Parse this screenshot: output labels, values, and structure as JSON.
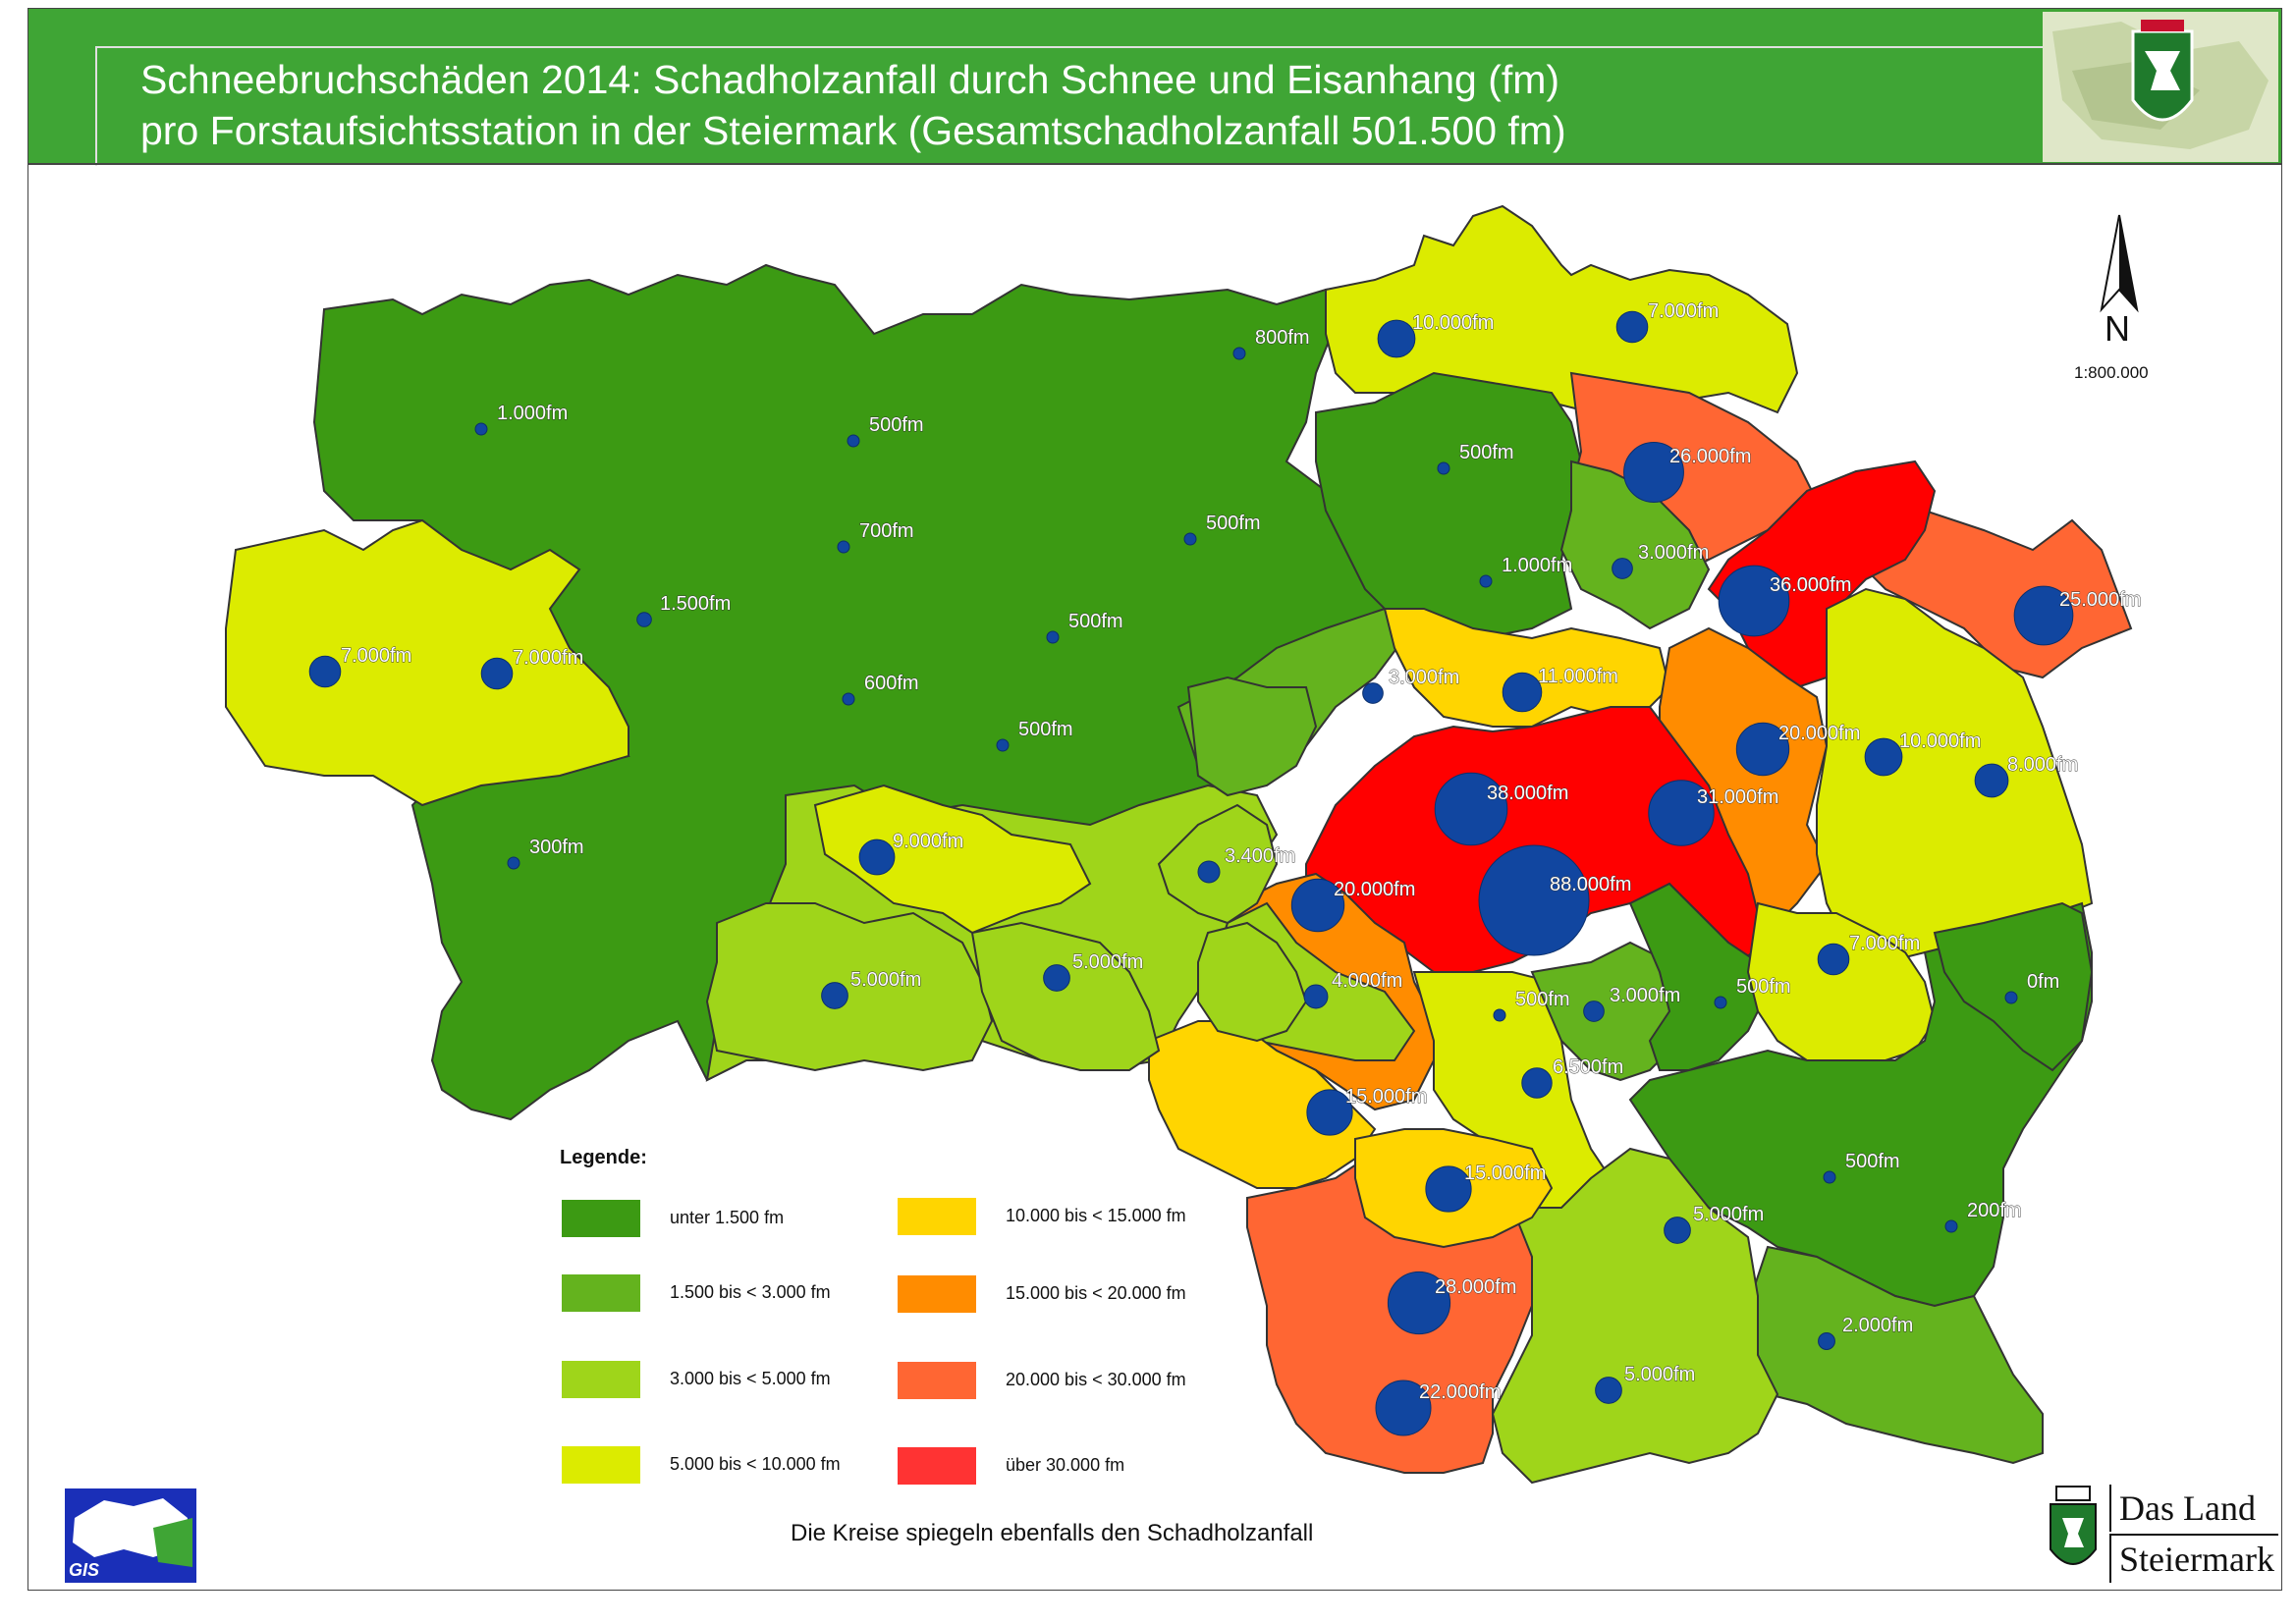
{
  "title": {
    "line1": "Schneebruchschäden 2014: Schadholzanfall durch Schnee und Eisanhang (fm)",
    "line2": "pro Forstaufsichtsstation in der Steiermark (Gesamtschadholzanfall 501.500 fm)"
  },
  "colors": {
    "header": "#3fa535",
    "c1": "#3c9a13",
    "c2": "#64b31e",
    "c3": "#9fd51a",
    "c4": "#dceb00",
    "c5": "#ffd500",
    "c6": "#ff8c00",
    "c7": "#ff6633",
    "c8": "#ff0000",
    "circle": "#1146a0"
  },
  "legend": {
    "title": "Legende:",
    "items": [
      {
        "label": "unter  1.500 fm",
        "color": "#3c9a13"
      },
      {
        "label": "1.500 bis <  3.000 fm",
        "color": "#64b31e"
      },
      {
        "label": "3.000 bis <  5.000 fm",
        "color": "#9fd51a"
      },
      {
        "label": "5.000 bis < 10.000 fm",
        "color": "#dceb00"
      },
      {
        "label": "10.000 bis < 15.000 fm",
        "color": "#ffd500"
      },
      {
        "label": "15.000 bis < 20.000 fm",
        "color": "#ff8c00"
      },
      {
        "label": "20.000 bis < 30.000 fm",
        "color": "#ff6633"
      },
      {
        "label": "über 30.000 fm",
        "color": "#ff3333"
      }
    ]
  },
  "stations": [
    {
      "label": "1.000fm",
      "value": 1000
    },
    {
      "label": "500fm",
      "value": 500
    },
    {
      "label": "800fm",
      "value": 800
    },
    {
      "label": "10.000fm",
      "value": 10000
    },
    {
      "label": "7.000fm",
      "value": 7000
    },
    {
      "label": "700fm",
      "value": 700
    },
    {
      "label": "500fm",
      "value": 500
    },
    {
      "label": "500fm",
      "value": 500
    },
    {
      "label": "26.000fm",
      "value": 26000
    },
    {
      "label": "1.500fm",
      "value": 1500
    },
    {
      "label": "7.000fm",
      "value": 7000
    },
    {
      "label": "7.000fm",
      "value": 7000
    },
    {
      "label": "500fm",
      "value": 500
    },
    {
      "label": "1.000fm",
      "value": 1000
    },
    {
      "label": "3.000fm",
      "value": 3000
    },
    {
      "label": "36.000fm",
      "value": 36000
    },
    {
      "label": "25.000fm",
      "value": 25000
    },
    {
      "label": "600fm",
      "value": 600
    },
    {
      "label": "500fm",
      "value": 500
    },
    {
      "label": "3.000fm",
      "value": 3000
    },
    {
      "label": "11.000fm",
      "value": 11000
    },
    {
      "label": "20.000fm",
      "value": 20000
    },
    {
      "label": "10.000fm",
      "value": 10000
    },
    {
      "label": "8.000fm",
      "value": 8000
    },
    {
      "label": "300fm",
      "value": 300
    },
    {
      "label": "9.000fm",
      "value": 9000
    },
    {
      "label": "3.400fm",
      "value": 3400
    },
    {
      "label": "38.000fm",
      "value": 38000
    },
    {
      "label": "31.000fm",
      "value": 31000
    },
    {
      "label": "20.000fm",
      "value": 20000
    },
    {
      "label": "88.000fm",
      "value": 88000
    },
    {
      "label": "5.000fm",
      "value": 5000
    },
    {
      "label": "5.000fm",
      "value": 5000
    },
    {
      "label": "4.000fm",
      "value": 4000
    },
    {
      "label": "7.000fm",
      "value": 7000
    },
    {
      "label": "500fm",
      "value": 500
    },
    {
      "label": "3.000fm",
      "value": 3000
    },
    {
      "label": "500fm",
      "value": 500
    },
    {
      "label": "0fm",
      "value": 0
    },
    {
      "label": "6.500fm",
      "value": 6500
    },
    {
      "label": "15.000fm",
      "value": 15000
    },
    {
      "label": "15.000fm",
      "value": 15000
    },
    {
      "label": "500fm",
      "value": 500
    },
    {
      "label": "5.000fm",
      "value": 5000
    },
    {
      "label": "200fm",
      "value": 200
    },
    {
      "label": "28.000fm",
      "value": 28000
    },
    {
      "label": "2.000fm",
      "value": 2000
    },
    {
      "label": "5.000fm",
      "value": 5000
    },
    {
      "label": "22.000fm",
      "value": 22000
    }
  ],
  "north_label": "N",
  "scale": "1:800.000",
  "note": "Die Kreise spiegeln ebenfalls den Schadholzanfall",
  "gis_logo": "GIS",
  "brand": {
    "line1": "Das Land",
    "line2": "Steiermark"
  }
}
